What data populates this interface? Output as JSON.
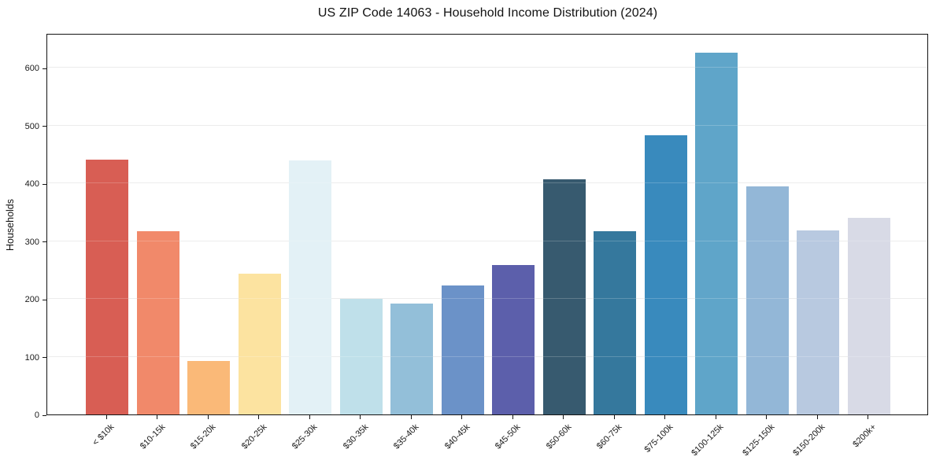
{
  "chart_data": {
    "type": "bar",
    "title": "US ZIP Code 14063 - Household Income Distribution (2024)",
    "xlabel": "",
    "ylabel": "Households",
    "categories": [
      "< $10k",
      "$10-15k",
      "$15-20k",
      "$20-25k",
      "$25-30k",
      "$30-35k",
      "$35-40k",
      "$40-45k",
      "$45-50k",
      "$50-60k",
      "$60-75k",
      "$75-100k",
      "$100-125k",
      "$125-150k",
      "$150-200k",
      "$200k+"
    ],
    "values": [
      441,
      317,
      92,
      244,
      439,
      200,
      192,
      223,
      259,
      407,
      317,
      483,
      626,
      395,
      318,
      340
    ],
    "bar_colors": [
      "#d85e54",
      "#f1896a",
      "#fab978",
      "#fce3a0",
      "#e3f1f6",
      "#bfe0ea",
      "#93bfd9",
      "#6b92c8",
      "#5c5fab",
      "#375a6f",
      "#35789d",
      "#398abd",
      "#5fa5c9",
      "#93b7d7",
      "#b8c9e0",
      "#d8dae6"
    ],
    "ylim": [
      0,
      660
    ],
    "yticks": [
      0,
      100,
      200,
      300,
      400,
      500,
      600
    ],
    "grid": "horizontal-light-gray",
    "gridline_color": "#e8e8e8",
    "legend": "none",
    "x_tick_rotation_deg": 45
  }
}
